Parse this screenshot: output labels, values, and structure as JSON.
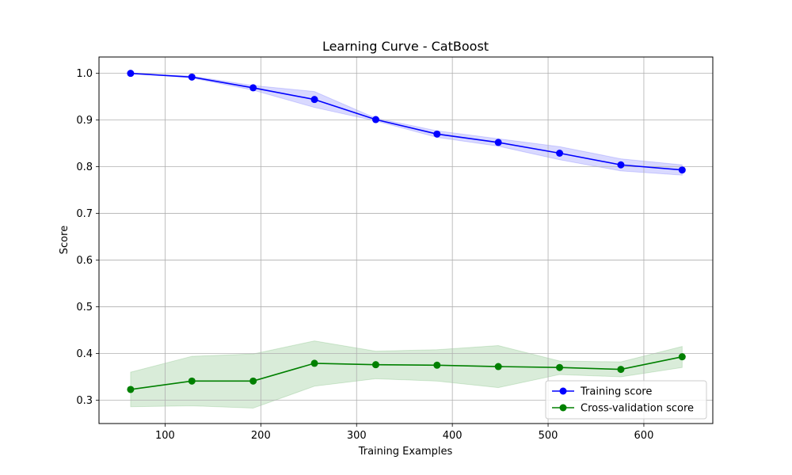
{
  "chart_data": {
    "type": "line",
    "title": "Learning Curve - CatBoost",
    "xlabel": "Training Examples",
    "ylabel": "Score",
    "xlim": [
      31,
      672
    ],
    "ylim": [
      0.25,
      1.035
    ],
    "xticks": [
      100,
      200,
      300,
      400,
      500,
      600
    ],
    "yticks": [
      0.3,
      0.4,
      0.5,
      0.6,
      0.7,
      0.8,
      0.9,
      1.0
    ],
    "grid": true,
    "legend_position": "lower-right",
    "x": [
      64,
      128,
      192,
      256,
      320,
      384,
      448,
      512,
      576,
      640
    ],
    "series": [
      {
        "name": "Training score",
        "color": "#0000ff",
        "band_color": "#0000ff",
        "values": [
          1.0,
          0.992,
          0.969,
          0.944,
          0.901,
          0.87,
          0.852,
          0.829,
          0.804,
          0.793
        ],
        "band_lower": [
          1.0,
          0.99,
          0.964,
          0.927,
          0.898,
          0.863,
          0.844,
          0.815,
          0.791,
          0.782
        ],
        "band_upper": [
          1.0,
          0.994,
          0.974,
          0.961,
          0.904,
          0.877,
          0.86,
          0.843,
          0.817,
          0.804
        ]
      },
      {
        "name": "Cross-validation score",
        "color": "#008000",
        "band_color": "#008000",
        "values": [
          0.323,
          0.341,
          0.341,
          0.379,
          0.376,
          0.375,
          0.372,
          0.37,
          0.366,
          0.393
        ],
        "band_lower": [
          0.286,
          0.288,
          0.283,
          0.33,
          0.346,
          0.341,
          0.327,
          0.355,
          0.35,
          0.37
        ],
        "band_upper": [
          0.36,
          0.394,
          0.399,
          0.427,
          0.405,
          0.408,
          0.417,
          0.384,
          0.382,
          0.415
        ]
      }
    ]
  }
}
